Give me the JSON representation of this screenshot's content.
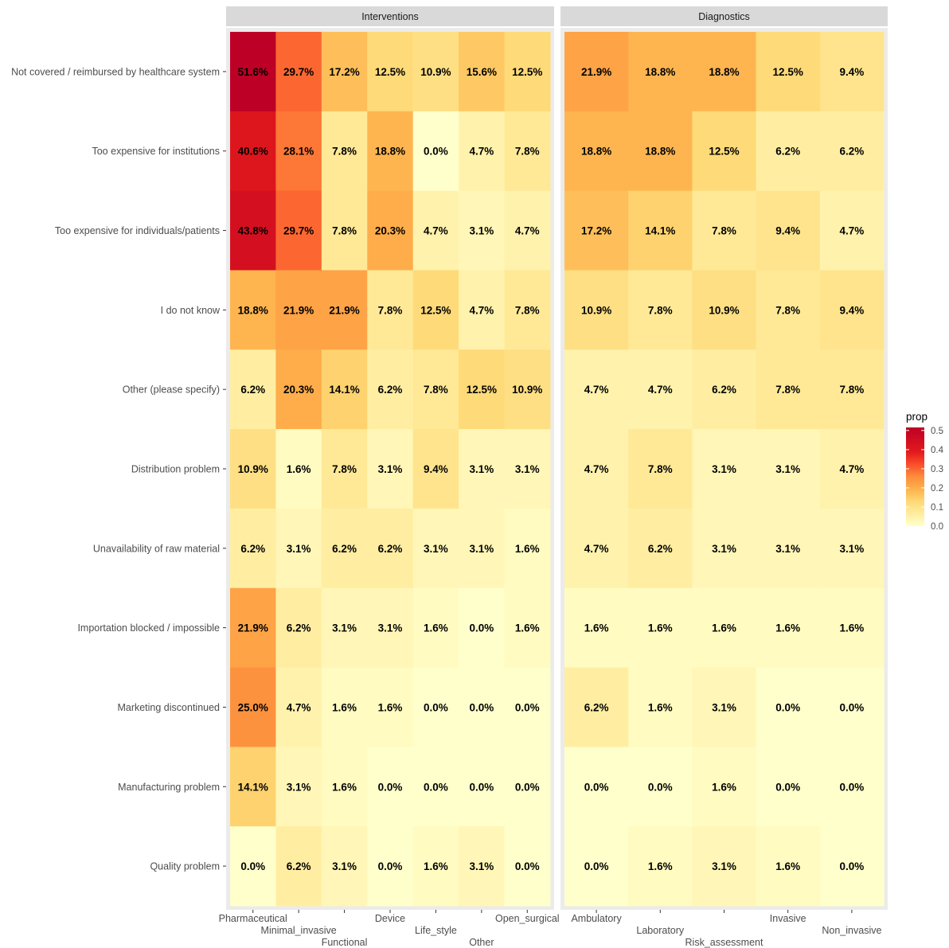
{
  "chart_data": {
    "type": "heatmap",
    "fill_variable": "prop",
    "color_scale": {
      "low": "#ffffcc",
      "mid": "#fd8d3c",
      "high": "#bd0026",
      "min": 0,
      "max": 0.516
    },
    "rows": [
      "Not covered / reimbursed by healthcare system",
      "Too expensive for institutions",
      "Too expensive for individuals/patients",
      "I do not know",
      "Other (please specify)",
      "Distribution problem",
      "Unavailability of raw material",
      "Importation blocked / impossible",
      "Marketing discontinued",
      "Manufacturing problem",
      "Quality problem"
    ],
    "panels": [
      {
        "strip": "Interventions",
        "columns": [
          "Pharmaceutical",
          "Minimal_invasive",
          "Functional",
          "Device",
          "Life_style",
          "Other",
          "Open_surgical"
        ],
        "values": [
          [
            0.516,
            0.297,
            0.172,
            0.125,
            0.109,
            0.156,
            0.125
          ],
          [
            0.406,
            0.281,
            0.078,
            0.188,
            0.0,
            0.047,
            0.078
          ],
          [
            0.438,
            0.297,
            0.078,
            0.203,
            0.047,
            0.031,
            0.047
          ],
          [
            0.188,
            0.219,
            0.219,
            0.078,
            0.125,
            0.047,
            0.078
          ],
          [
            0.062,
            0.203,
            0.141,
            0.062,
            0.078,
            0.125,
            0.109
          ],
          [
            0.109,
            0.016,
            0.078,
            0.031,
            0.094,
            0.031,
            0.031
          ],
          [
            0.062,
            0.031,
            0.062,
            0.062,
            0.031,
            0.031,
            0.016
          ],
          [
            0.219,
            0.062,
            0.031,
            0.031,
            0.016,
            0.0,
            0.016
          ],
          [
            0.25,
            0.047,
            0.016,
            0.016,
            0.0,
            0.0,
            0.0
          ],
          [
            0.141,
            0.031,
            0.016,
            0.0,
            0.0,
            0.0,
            0.0
          ],
          [
            0.0,
            0.062,
            0.031,
            0.0,
            0.016,
            0.031,
            0.0
          ]
        ],
        "labels": [
          [
            "51.6%",
            "29.7%",
            "17.2%",
            "12.5%",
            "10.9%",
            "15.6%",
            "12.5%"
          ],
          [
            "40.6%",
            "28.1%",
            "7.8%",
            "18.8%",
            "0.0%",
            "4.7%",
            "7.8%"
          ],
          [
            "43.8%",
            "29.7%",
            "7.8%",
            "20.3%",
            "4.7%",
            "3.1%",
            "4.7%"
          ],
          [
            "18.8%",
            "21.9%",
            "21.9%",
            "7.8%",
            "12.5%",
            "4.7%",
            "7.8%"
          ],
          [
            "6.2%",
            "20.3%",
            "14.1%",
            "6.2%",
            "7.8%",
            "12.5%",
            "10.9%"
          ],
          [
            "10.9%",
            "1.6%",
            "7.8%",
            "3.1%",
            "9.4%",
            "3.1%",
            "3.1%"
          ],
          [
            "6.2%",
            "3.1%",
            "6.2%",
            "6.2%",
            "3.1%",
            "3.1%",
            "1.6%"
          ],
          [
            "21.9%",
            "6.2%",
            "3.1%",
            "3.1%",
            "1.6%",
            "0.0%",
            "1.6%"
          ],
          [
            "25.0%",
            "4.7%",
            "1.6%",
            "1.6%",
            "0.0%",
            "0.0%",
            "0.0%"
          ],
          [
            "14.1%",
            "3.1%",
            "1.6%",
            "0.0%",
            "0.0%",
            "0.0%",
            "0.0%"
          ],
          [
            "0.0%",
            "6.2%",
            "3.1%",
            "0.0%",
            "1.6%",
            "3.1%",
            "0.0%"
          ]
        ]
      },
      {
        "strip": "Diagnostics",
        "columns": [
          "Ambulatory",
          "Laboratory",
          "Risk_assessment",
          "Invasive",
          "Non_invasive"
        ],
        "values": [
          [
            0.219,
            0.188,
            0.188,
            0.125,
            0.094
          ],
          [
            0.188,
            0.188,
            0.125,
            0.062,
            0.062
          ],
          [
            0.172,
            0.141,
            0.078,
            0.094,
            0.047
          ],
          [
            0.109,
            0.078,
            0.109,
            0.078,
            0.094
          ],
          [
            0.047,
            0.047,
            0.062,
            0.078,
            0.078
          ],
          [
            0.047,
            0.078,
            0.031,
            0.031,
            0.047
          ],
          [
            0.047,
            0.062,
            0.031,
            0.031,
            0.031
          ],
          [
            0.016,
            0.016,
            0.016,
            0.016,
            0.016
          ],
          [
            0.062,
            0.016,
            0.031,
            0.0,
            0.0
          ],
          [
            0.0,
            0.0,
            0.016,
            0.0,
            0.0
          ],
          [
            0.0,
            0.016,
            0.031,
            0.016,
            0.0
          ]
        ],
        "labels": [
          [
            "21.9%",
            "18.8%",
            "18.8%",
            "12.5%",
            "9.4%"
          ],
          [
            "18.8%",
            "18.8%",
            "12.5%",
            "6.2%",
            "6.2%"
          ],
          [
            "17.2%",
            "14.1%",
            "7.8%",
            "9.4%",
            "4.7%"
          ],
          [
            "10.9%",
            "7.8%",
            "10.9%",
            "7.8%",
            "9.4%"
          ],
          [
            "4.7%",
            "4.7%",
            "6.2%",
            "7.8%",
            "7.8%"
          ],
          [
            "4.7%",
            "7.8%",
            "3.1%",
            "3.1%",
            "4.7%"
          ],
          [
            "4.7%",
            "6.2%",
            "3.1%",
            "3.1%",
            "3.1%"
          ],
          [
            "1.6%",
            "1.6%",
            "1.6%",
            "1.6%",
            "1.6%"
          ],
          [
            "6.2%",
            "1.6%",
            "3.1%",
            "0.0%",
            "0.0%"
          ],
          [
            "0.0%",
            "0.0%",
            "1.6%",
            "0.0%",
            "0.0%"
          ],
          [
            "0.0%",
            "1.6%",
            "3.1%",
            "1.6%",
            "0.0%"
          ]
        ]
      }
    ],
    "legend": {
      "title": "prop",
      "ticks": [
        "0.5",
        "0.4",
        "0.3",
        "0.2",
        "0.1",
        "0.0"
      ],
      "tick_values": [
        0.5,
        0.4,
        0.3,
        0.2,
        0.1,
        0.0
      ]
    }
  }
}
